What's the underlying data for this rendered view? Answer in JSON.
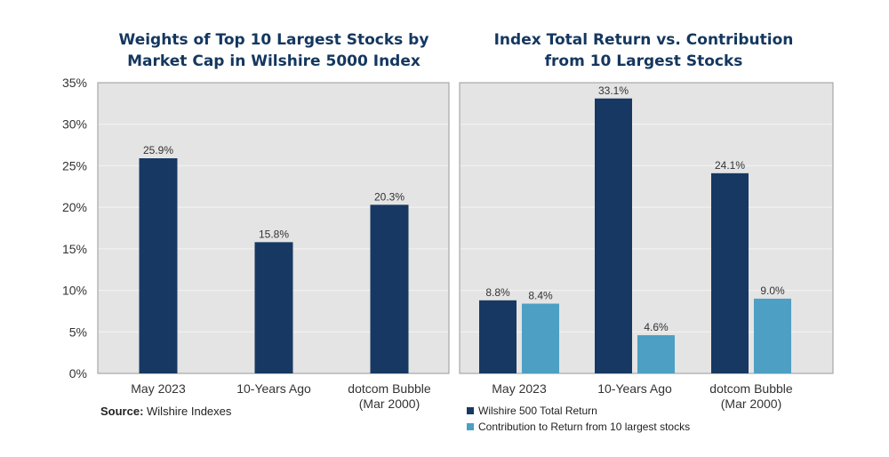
{
  "colors": {
    "dark_navy": "#173862",
    "light_blue": "#4d9fc3",
    "plot_bg": "#e4e4e4",
    "grid": "#f3f3f3",
    "frame": "#9a9a9a"
  },
  "source": {
    "label": "Source:",
    "text": " Wilshire Indexes"
  },
  "chart_data": [
    {
      "type": "bar",
      "title": "Weights of Top 10 Largest Stocks by\nMarket Cap in Wilshire 5000 Index",
      "categories": [
        "May 2023",
        "10-Years Ago",
        "dotcom Bubble\n(Mar 2000)"
      ],
      "series": [
        {
          "values": [
            25.9,
            15.8,
            20.3
          ],
          "color": "dark_navy"
        }
      ],
      "data_labels": [
        [
          "25.9%",
          "15.8%",
          "20.3%"
        ]
      ],
      "yticks": [
        "0%",
        "5%",
        "10%",
        "15%",
        "20%",
        "25%",
        "30%",
        "35%"
      ],
      "ylim": [
        0,
        35
      ],
      "grid": true,
      "legend": "none"
    },
    {
      "type": "bar",
      "title": "Index Total Return vs. Contribution\nfrom 10 Largest Stocks",
      "categories": [
        "May 2023",
        "10-Years Ago",
        "dotcom Bubble\n(Mar 2000)"
      ],
      "series": [
        {
          "name": "Wilshire 500 Total Return",
          "values": [
            8.8,
            33.1,
            24.1
          ],
          "color": "dark_navy"
        },
        {
          "name": "Contribution to Return from 10 largest stocks",
          "values": [
            8.4,
            4.6,
            9.0
          ],
          "color": "light_blue"
        }
      ],
      "data_labels": [
        [
          "8.8%",
          "33.1%",
          "24.1%"
        ],
        [
          "8.4%",
          "4.6%",
          "9.0%"
        ]
      ],
      "ylim": [
        0,
        35
      ],
      "grid": true,
      "legend": "bottom-left"
    }
  ]
}
